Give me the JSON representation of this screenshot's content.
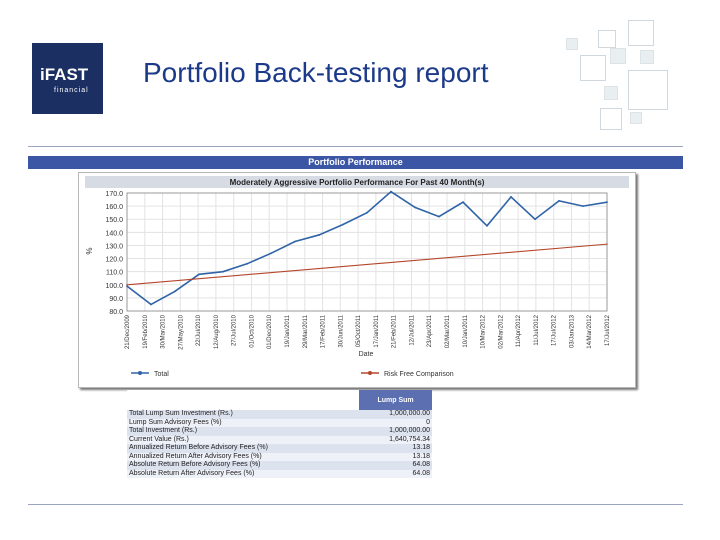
{
  "logo": {
    "line1": "iFAST",
    "line2": "financial"
  },
  "title": "Portfolio Back-testing report",
  "section_band": "Portfolio Performance",
  "chart_data": {
    "type": "line",
    "title": "Moderately Aggressive Portfolio Performance For Past 40 Month(s)",
    "xlabel": "Date",
    "ylabel": "%",
    "ylim": [
      80,
      170
    ],
    "yticks": [
      80.0,
      90.0,
      100.0,
      110.0,
      120.0,
      130.0,
      140.0,
      150.0,
      160.0,
      170.0
    ],
    "ytick_labels": [
      "80.0",
      "90.0",
      "100.0",
      "110.0",
      "120.0",
      "130.0",
      "140.0",
      "150.0",
      "160.0",
      "170.0"
    ],
    "x_tick_labels": [
      "21/Dec/2009",
      "19/Feb/2010",
      "30/Mar/2010",
      "27/May/2010",
      "22/Jul/2010",
      "12/Aug/2010",
      "27/Jul/2010",
      "01/Oct/2010",
      "01/Dec/2010",
      "19/Jan/2011",
      "29/Mar/2011",
      "17/Feb/2011",
      "30/Jun/2011",
      "05/Oct/2011",
      "17/Jan/2011",
      "21/Feb/2011",
      "12/Jul/2011",
      "23/Apr/2011",
      "02/Mar/2011",
      "10/Jan/2011",
      "10/Mar/2012",
      "02/Mar/2012",
      "11/Apr/2012",
      "11/Jul/2012",
      "17/Jul/2012",
      "03/Jan/2013",
      "14/Mar/2012",
      "17/Jul/2012"
    ],
    "grid": true,
    "legend_position": "bottom",
    "series": [
      {
        "name": "Total",
        "color": "#2f64a8",
        "x": [
          0,
          2,
          4,
          6,
          8,
          10,
          12,
          14,
          16,
          18,
          20,
          22,
          24,
          26,
          28,
          30,
          32,
          34,
          36,
          38,
          40
        ],
        "y": [
          99,
          85,
          95,
          108,
          110,
          116,
          124,
          133,
          138,
          146,
          155,
          171,
          159,
          152,
          163,
          145,
          167,
          150,
          164,
          160,
          163
        ]
      },
      {
        "name": "Risk Free Comparison",
        "color": "#b5462b",
        "x": [
          0,
          40
        ],
        "y": [
          100,
          131
        ]
      }
    ]
  },
  "table": {
    "header": "Lump Sum",
    "rows": [
      {
        "label": "Total Lump Sum Investment (Rs.)",
        "value": "1,000,000.00"
      },
      {
        "label": "Lump Sum Advisory Fees (%)",
        "value": "0"
      },
      {
        "label": "Total Investment (Rs.)",
        "value": "1,000,000.00"
      },
      {
        "label": "Current Value (Rs.)",
        "value": "1,640,754.34"
      },
      {
        "label": "Annualized Return Before Advisory Fees (%)",
        "value": "13.18"
      },
      {
        "label": "Annualized Return After Advisory Fees (%)",
        "value": "13.18"
      },
      {
        "label": "Absolute Return Before Advisory Fees (%)",
        "value": "64.08"
      },
      {
        "label": "Absolute Return After Advisory Fees (%)",
        "value": "64.08"
      }
    ]
  }
}
